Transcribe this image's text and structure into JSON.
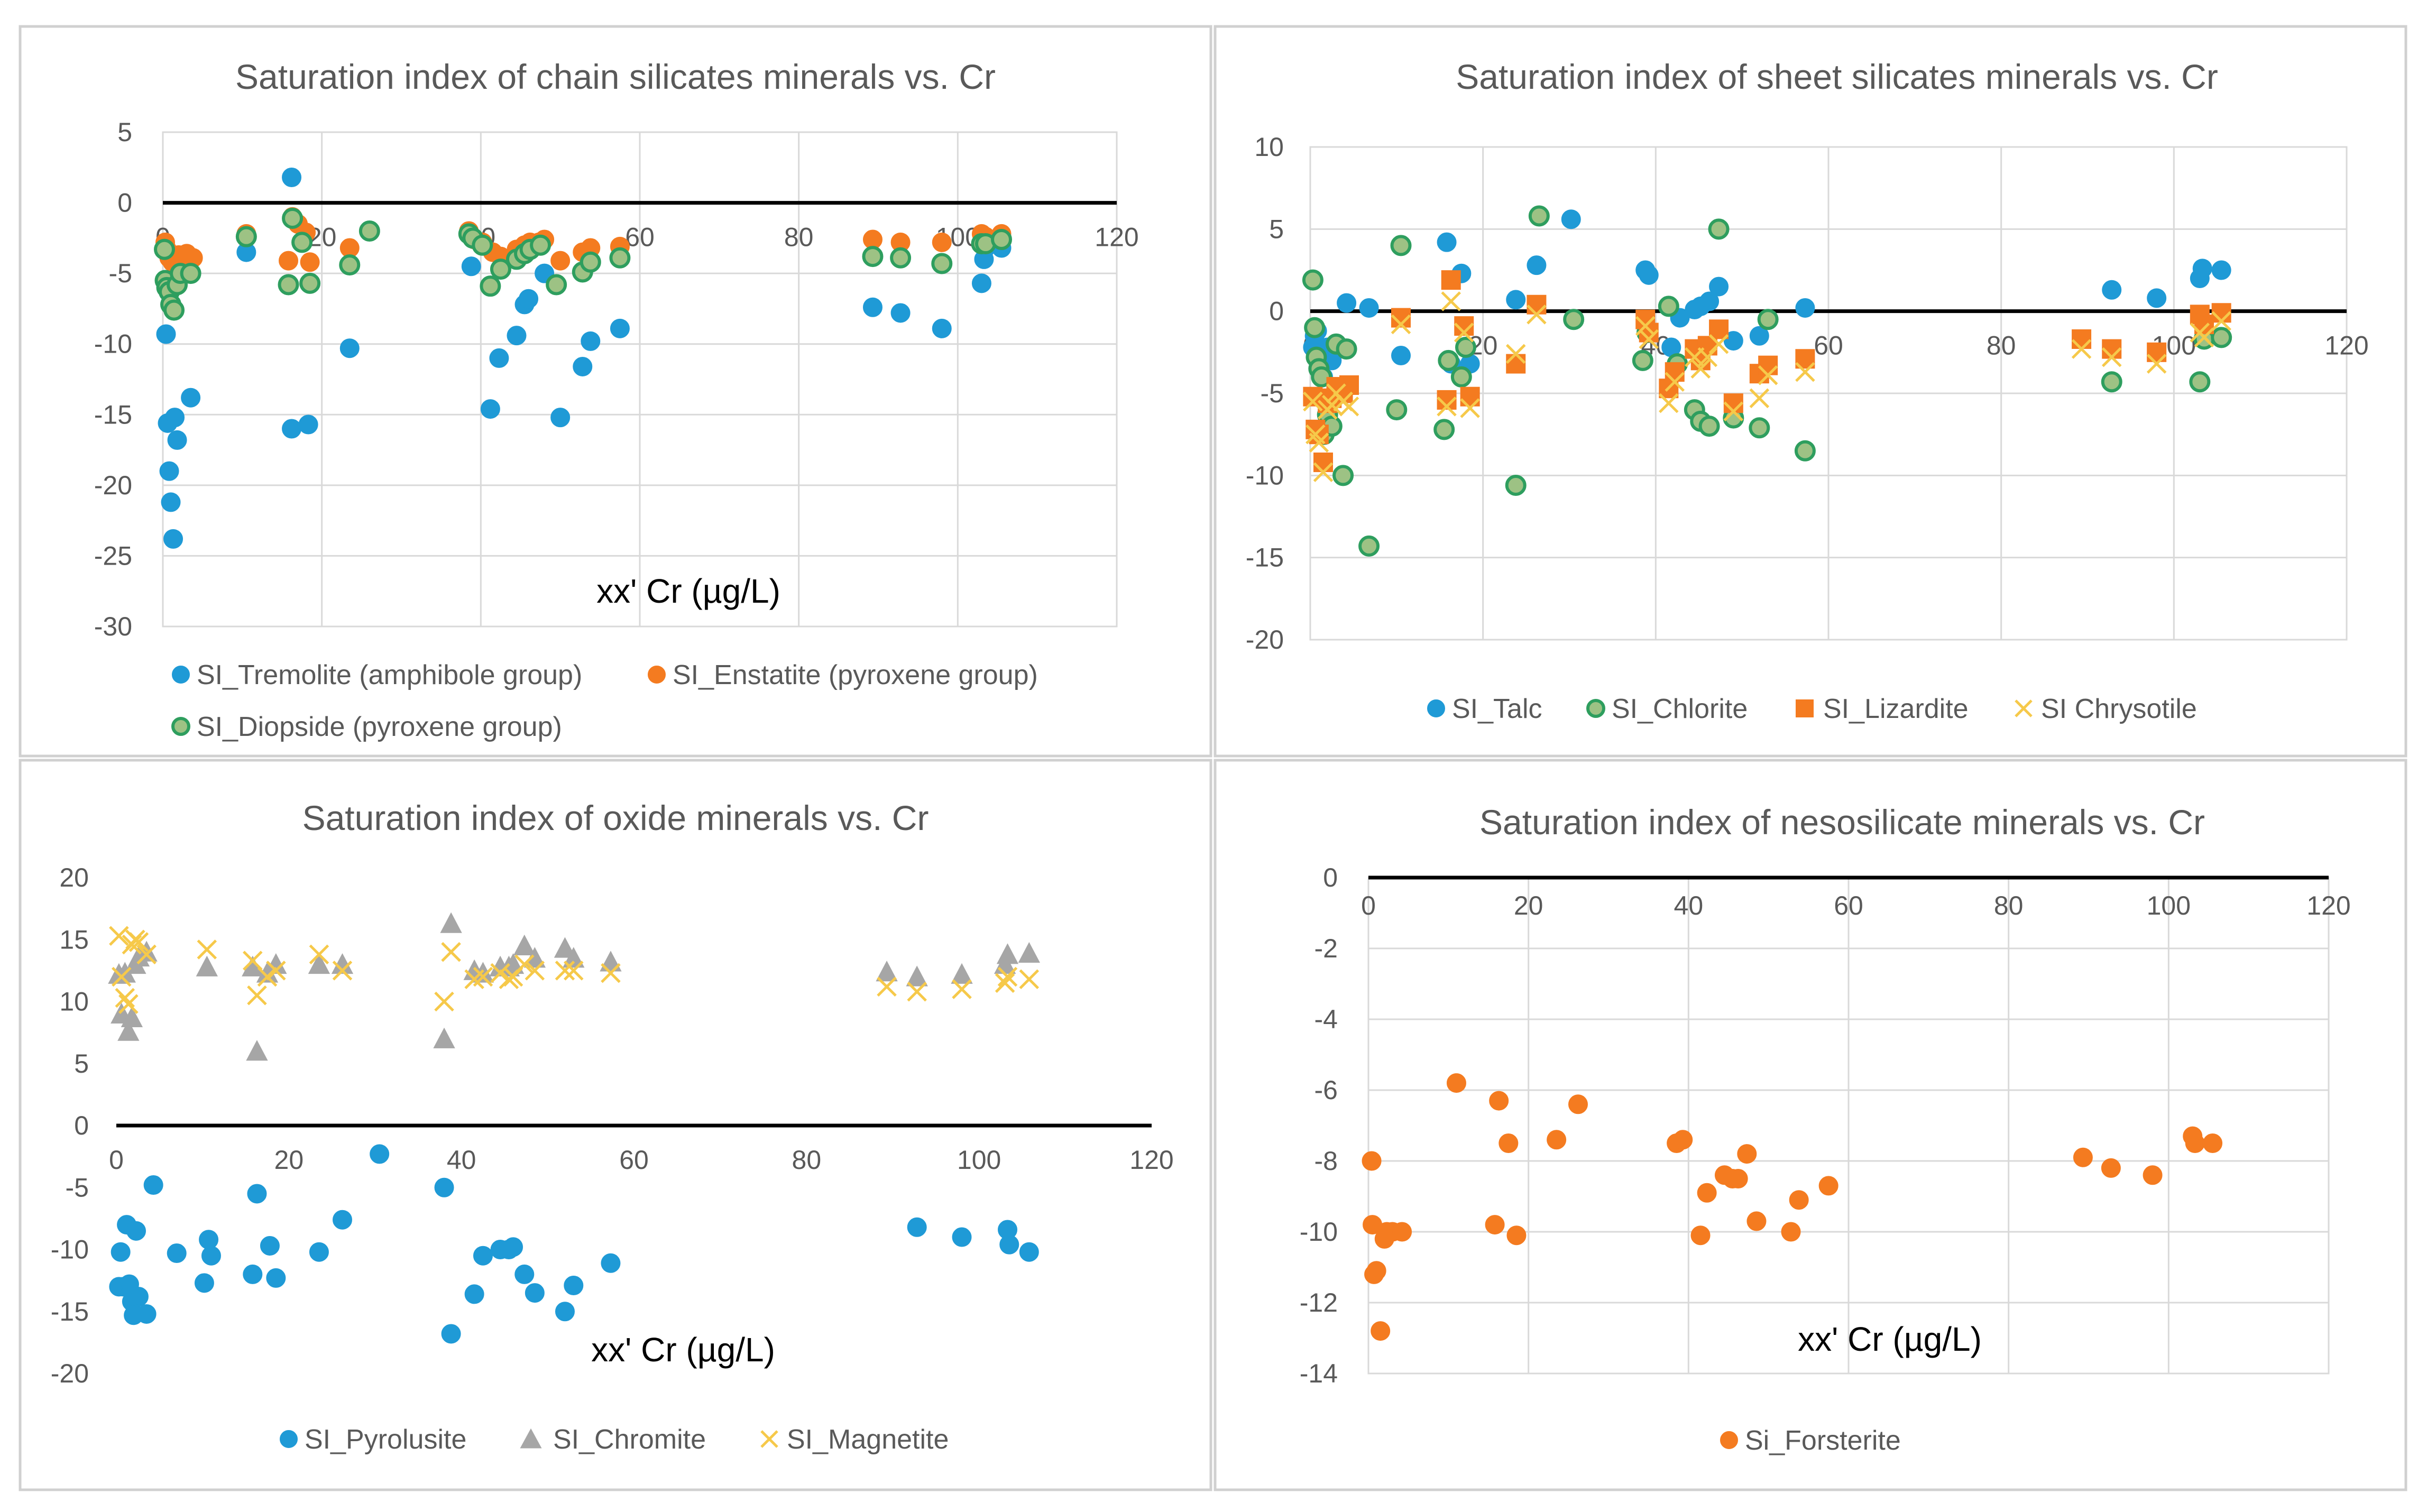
{
  "figure": {
    "panels": [
      "chain",
      "sheet",
      "oxide",
      "neso"
    ],
    "marker_styles": {
      "blue_circle": {
        "fill": "#1f9ad6",
        "stroke": "#1f9ad6"
      },
      "orange_circle": {
        "fill": "#f47b20",
        "stroke": "#f47b20"
      },
      "green_circle": {
        "fill": "#9dc284",
        "stroke": "#2e9e5e"
      },
      "orange_square": {
        "fill": "#f47b20",
        "stroke": "#f47b20"
      },
      "yellow_x": {
        "fill": "none",
        "stroke": "#f6c94a"
      },
      "gray_triangle": {
        "fill": "#a6a6a6",
        "stroke": "#a6a6a6"
      }
    }
  },
  "chart_data": [
    {
      "id": "chain",
      "type": "scatter",
      "title": "Saturation index of chain silicates minerals  vs. Cr",
      "xlabel": "xx' Cr (µg/L)",
      "ylabel": "",
      "xlim": [
        0,
        120
      ],
      "ylim": [
        -30,
        5
      ],
      "xticks": [
        0,
        20,
        40,
        60,
        80,
        100,
        120
      ],
      "yticks": [
        5,
        0,
        -5,
        -10,
        -15,
        -20,
        -25,
        -30
      ],
      "xtick_labels": [
        "0",
        "20",
        "40",
        "60",
        "80",
        "100",
        "120"
      ],
      "ytick_labels": [
        "5",
        "0",
        "-5",
        "-10",
        "-15",
        "-20",
        "-25",
        "-30"
      ],
      "grid": true,
      "legend": "bottom",
      "series": [
        {
          "name": "SI_Tremolite (amphibole group)",
          "marker": "blue_circle",
          "x": [
            0.3,
            0.4,
            0.6,
            0.8,
            1.0,
            1.3,
            1.5,
            1.8,
            2.0,
            2.3,
            3.5,
            10.5,
            16.2,
            16.2,
            18.3,
            23.5,
            38.8,
            41.2,
            42.3,
            44.5,
            45.5,
            46.0,
            48.0,
            50.0,
            52.8,
            53.8,
            57.5,
            89.3,
            92.8,
            98.0,
            103.0,
            103.3,
            103.5,
            105.5
          ],
          "y": [
            -3.0,
            -9.3,
            -15.6,
            -19.0,
            -21.2,
            -23.8,
            -15.2,
            -16.8,
            -5.0,
            -4.2,
            -13.8,
            -3.5,
            1.8,
            -16.0,
            -15.7,
            -10.3,
            -4.5,
            -14.6,
            -11.0,
            -9.4,
            -7.2,
            -6.8,
            -5.0,
            -15.2,
            -11.6,
            -9.8,
            -8.9,
            -7.4,
            -7.8,
            -8.9,
            -5.7,
            -4.0,
            -3.2,
            -3.2
          ]
        },
        {
          "name": "SI_Enstatite (pyroxene group)",
          "marker": "orange_circle",
          "x": [
            0.3,
            0.5,
            0.8,
            1.2,
            1.6,
            2.0,
            2.5,
            3.0,
            3.8,
            10.5,
            15.8,
            16.3,
            17.0,
            18.0,
            18.5,
            23.5,
            26.0,
            38.5,
            39.2,
            40.2,
            41.5,
            42.5,
            44.5,
            45.5,
            46.2,
            47.3,
            48.0,
            50.0,
            52.8,
            53.8,
            57.5,
            89.3,
            92.8,
            98.0,
            103.0,
            103.5,
            105.5
          ],
          "y": [
            -2.8,
            -3.3,
            -3.9,
            -4.2,
            -4.1,
            -3.7,
            -4.0,
            -3.6,
            -3.9,
            -2.2,
            -4.1,
            -1.0,
            -1.5,
            -2.1,
            -4.2,
            -3.2,
            -2.0,
            -2.0,
            -2.6,
            -2.8,
            -3.5,
            -3.8,
            -3.3,
            -3.0,
            -2.8,
            -2.8,
            -2.6,
            -4.1,
            -3.5,
            -3.2,
            -3.1,
            -2.6,
            -2.8,
            -2.8,
            -2.2,
            -2.4,
            -2.2
          ]
        },
        {
          "name": "SI_Diopside (pyroxene group)",
          "marker": "green_circle",
          "x": [
            0.2,
            0.3,
            0.5,
            0.8,
            1.0,
            1.4,
            1.8,
            2.2,
            3.5,
            10.5,
            15.8,
            16.3,
            17.5,
            18.5,
            23.5,
            26.0,
            38.5,
            39.0,
            40.2,
            41.2,
            42.5,
            44.5,
            45.5,
            46.2,
            47.5,
            49.5,
            52.8,
            53.8,
            57.5,
            89.3,
            92.8,
            98.0,
            103.0,
            103.5,
            105.5
          ],
          "y": [
            -3.3,
            -5.5,
            -6.0,
            -6.3,
            -7.2,
            -7.6,
            -5.8,
            -5.0,
            -5.0,
            -2.4,
            -5.8,
            -1.1,
            -2.8,
            -5.7,
            -4.4,
            -2.0,
            -2.2,
            -2.5,
            -3.0,
            -5.9,
            -4.7,
            -4.0,
            -3.6,
            -3.3,
            -3.0,
            -5.8,
            -4.9,
            -4.2,
            -3.9,
            -3.8,
            -3.9,
            -4.3,
            -2.9,
            -2.9,
            -2.6
          ]
        }
      ]
    },
    {
      "id": "sheet",
      "type": "scatter",
      "title": "Saturation index of  sheet silicates minerals vs. Cr",
      "xlabel": "",
      "ylabel": "",
      "xlim": [
        0,
        120
      ],
      "ylim": [
        -20,
        10
      ],
      "xticks": [
        0,
        20,
        40,
        60,
        80,
        100,
        120
      ],
      "yticks": [
        10,
        5,
        0,
        -5,
        -10,
        -15,
        -20
      ],
      "xtick_labels": [
        "0",
        "20",
        "40",
        "60",
        "80",
        "100",
        "120"
      ],
      "ytick_labels": [
        "10",
        "5",
        "0",
        "-5",
        "-10",
        "-15",
        "-20"
      ],
      "grid": true,
      "legend": "bottom",
      "series": [
        {
          "name": "SI_Talc",
          "marker": "blue_circle",
          "x": [
            0.3,
            0.5,
            0.8,
            1.0,
            1.5,
            2.0,
            2.5,
            4.2,
            6.8,
            10.5,
            15.8,
            16.3,
            17.5,
            18.5,
            23.8,
            26.2,
            30.2,
            38.8,
            39.2,
            41.8,
            42.8,
            44.5,
            45.2,
            46.2,
            47.3,
            49.0,
            52.0,
            57.3,
            92.8,
            98.0,
            103.0,
            103.3,
            105.5
          ],
          "y": [
            -2.2,
            -1.5,
            -1.2,
            -3.3,
            -4.0,
            -2.2,
            -3.0,
            0.5,
            0.2,
            -2.7,
            4.2,
            -3.2,
            2.3,
            -3.2,
            0.7,
            2.8,
            5.6,
            2.5,
            2.2,
            -2.2,
            -0.4,
            0.1,
            0.3,
            0.6,
            1.5,
            -1.8,
            -1.5,
            0.2,
            1.3,
            0.8,
            2.0,
            2.6,
            2.5
          ]
        },
        {
          "name": "SI_Chlorite",
          "marker": "green_circle",
          "x": [
            0.3,
            0.5,
            0.7,
            1.0,
            1.3,
            1.6,
            2.0,
            2.5,
            3.0,
            3.8,
            4.2,
            6.8,
            10.0,
            10.5,
            15.5,
            16.0,
            17.5,
            18.0,
            23.8,
            26.5,
            30.5,
            38.5,
            39.0,
            41.5,
            42.5,
            44.5,
            45.2,
            46.2,
            47.3,
            49.0,
            52.0,
            53.0,
            57.3,
            92.8,
            103.0,
            103.5,
            105.5
          ],
          "y": [
            1.9,
            -1.0,
            -2.8,
            -3.5,
            -4.0,
            -7.5,
            -6.3,
            -7.0,
            -2.0,
            -10.0,
            -2.3,
            -14.3,
            -6.0,
            4.0,
            -7.2,
            -3.0,
            -4.0,
            -2.2,
            -10.6,
            5.8,
            -0.5,
            -3.0,
            -1.3,
            0.3,
            -3.2,
            -6.0,
            -6.7,
            -7.0,
            5.0,
            -6.5,
            -7.1,
            -0.5,
            -8.5,
            -4.3,
            -4.3,
            -1.7,
            -1.6
          ]
        },
        {
          "name": "SI_Lizardite",
          "marker": "orange_square",
          "x": [
            0.3,
            0.6,
            1.0,
            1.5,
            2.0,
            2.5,
            3.0,
            3.8,
            4.5,
            10.5,
            15.8,
            16.3,
            17.8,
            18.5,
            23.8,
            26.2,
            38.8,
            39.2,
            41.5,
            42.2,
            44.5,
            45.2,
            46.0,
            47.3,
            49.0,
            52.0,
            53.0,
            57.3,
            89.3,
            92.8,
            98.0,
            103.0,
            103.5,
            105.5
          ],
          "y": [
            -5.2,
            -7.2,
            -7.5,
            -9.2,
            -5.6,
            -5.3,
            -4.6,
            -5.0,
            -4.5,
            -0.4,
            -5.4,
            1.9,
            -0.9,
            -5.2,
            -3.2,
            0.4,
            -0.5,
            -1.3,
            -4.7,
            -3.7,
            -2.3,
            -3.0,
            -2.1,
            -1.1,
            -5.6,
            -3.8,
            -3.3,
            -2.9,
            -1.7,
            -2.3,
            -2.5,
            -0.2,
            -0.8,
            -0.1
          ]
        },
        {
          "name": "SI Chrysotile",
          "marker": "yellow_x",
          "x": [
            0.3,
            0.6,
            1.0,
            1.5,
            2.0,
            2.5,
            3.0,
            3.8,
            4.5,
            10.5,
            15.8,
            16.3,
            17.8,
            18.5,
            23.8,
            26.2,
            38.8,
            39.2,
            41.5,
            42.2,
            44.5,
            45.2,
            46.0,
            47.3,
            49.0,
            52.0,
            53.0,
            57.3,
            89.3,
            92.8,
            98.0,
            103.0,
            103.5,
            105.5
          ],
          "y": [
            -5.5,
            -7.5,
            -8.0,
            -9.8,
            -6.0,
            -5.7,
            -5.0,
            -5.5,
            -5.8,
            -0.8,
            -5.8,
            0.6,
            -1.3,
            -5.9,
            -2.6,
            -0.2,
            -0.9,
            -1.7,
            -5.6,
            -4.3,
            -2.8,
            -3.5,
            -2.8,
            -2.0,
            -6.1,
            -5.3,
            -3.9,
            -3.7,
            -2.3,
            -2.8,
            -3.2,
            -1.3,
            -1.6,
            -0.6
          ]
        }
      ]
    },
    {
      "id": "oxide",
      "type": "scatter",
      "title": "Saturation index of oxide minerals vs. Cr",
      "xlabel": "xx' Cr (µg/L)",
      "ylabel": "",
      "xlim": [
        0,
        120
      ],
      "ylim": [
        -20,
        20
      ],
      "xticks": [
        0,
        20,
        40,
        60,
        80,
        100,
        120
      ],
      "yticks": [
        20,
        15,
        10,
        5,
        0,
        -5,
        -10,
        -15,
        -20
      ],
      "xtick_labels": [
        "0",
        "20",
        "40",
        "60",
        "80",
        "100",
        "120"
      ],
      "ytick_labels": [
        "20",
        "15",
        "10",
        "5",
        "0",
        "-5",
        "-10",
        "-15",
        "-20"
      ],
      "grid": false,
      "legend": "bottom",
      "series": [
        {
          "name": "SI_Pyrolusite",
          "marker": "blue_circle",
          "x": [
            0.3,
            0.5,
            0.8,
            1.2,
            1.5,
            1.8,
            2.0,
            2.3,
            2.6,
            3.5,
            4.3,
            7.0,
            10.2,
            10.7,
            11.0,
            15.8,
            16.3,
            17.8,
            18.5,
            23.5,
            26.2,
            30.5,
            38.0,
            38.8,
            41.5,
            42.5,
            44.5,
            45.5,
            46.0,
            47.3,
            48.5,
            52.0,
            53.0,
            57.3,
            92.8,
            98.0,
            103.3,
            103.5,
            105.8
          ],
          "y": [
            -13.0,
            -10.2,
            -13.0,
            -8.0,
            -12.8,
            -14.2,
            -15.3,
            -8.5,
            -13.8,
            -15.2,
            -4.8,
            -10.3,
            -12.7,
            -9.2,
            -10.5,
            -12.0,
            -5.5,
            -9.7,
            -12.3,
            -10.2,
            -7.6,
            -2.3,
            -5.0,
            -16.8,
            -13.6,
            -10.5,
            -10.0,
            -10.0,
            -9.8,
            -12.0,
            -13.5,
            -15.0,
            -12.9,
            -11.1,
            -8.2,
            -9.0,
            -8.4,
            -9.6,
            -10.2
          ]
        },
        {
          "name": "SI_Chromite",
          "marker": "gray_triangle",
          "x": [
            0.3,
            0.6,
            1.0,
            1.4,
            1.8,
            2.2,
            2.6,
            3.5,
            10.5,
            15.8,
            16.3,
            17.5,
            18.5,
            23.5,
            26.2,
            38.0,
            38.8,
            41.5,
            42.5,
            44.5,
            45.5,
            46.0,
            47.3,
            48.5,
            52.0,
            53.0,
            57.3,
            89.3,
            92.8,
            98.0,
            103.0,
            103.3,
            105.8
          ],
          "y": [
            12.2,
            9.0,
            12.3,
            7.6,
            8.7,
            13.0,
            13.6,
            14.0,
            12.8,
            12.8,
            6.0,
            12.3,
            13.0,
            13.0,
            13.0,
            7.0,
            16.3,
            12.5,
            12.3,
            12.8,
            12.8,
            13.0,
            14.5,
            13.5,
            14.3,
            13.5,
            13.2,
            12.4,
            12.0,
            12.2,
            13.0,
            13.8,
            13.9
          ]
        },
        {
          "name": "SI_Magnetite",
          "marker": "yellow_x",
          "x": [
            0.3,
            0.6,
            1.0,
            1.4,
            1.8,
            2.2,
            2.6,
            3.5,
            10.5,
            15.8,
            16.3,
            17.5,
            18.5,
            23.5,
            26.2,
            38.0,
            38.8,
            41.5,
            42.5,
            44.5,
            45.5,
            46.0,
            47.3,
            48.5,
            52.0,
            53.0,
            57.3,
            89.3,
            92.8,
            98.0,
            103.0,
            103.3,
            105.8
          ],
          "y": [
            15.3,
            12.0,
            10.3,
            9.8,
            14.6,
            15.0,
            14.8,
            13.8,
            14.2,
            13.3,
            10.5,
            12.0,
            12.5,
            13.8,
            12.5,
            10.0,
            14.0,
            11.8,
            12.0,
            12.3,
            11.8,
            12.0,
            13.0,
            12.5,
            12.5,
            12.5,
            12.3,
            11.2,
            10.8,
            11.0,
            11.5,
            12.0,
            11.8
          ]
        }
      ]
    },
    {
      "id": "neso",
      "type": "scatter",
      "title": "Saturation index of  nesosilicate minerals vs. Cr",
      "xlabel": "xx' Cr (µg/L)",
      "ylabel": "",
      "xlim": [
        0,
        120
      ],
      "ylim": [
        -14,
        0
      ],
      "xticks": [
        0,
        20,
        40,
        60,
        80,
        100,
        120
      ],
      "yticks": [
        0,
        -2,
        -4,
        -6,
        -8,
        -10,
        -12,
        -14
      ],
      "xtick_labels": [
        "0",
        "20",
        "40",
        "60",
        "80",
        "100",
        "120"
      ],
      "ytick_labels": [
        "0",
        "-2",
        "-4",
        "-6",
        "-8",
        "-10",
        "-12",
        "-14"
      ],
      "grid": true,
      "legend": "bottom",
      "series": [
        {
          "name": "Si_Forsterite",
          "marker": "orange_circle",
          "x": [
            0.4,
            0.5,
            0.7,
            1.0,
            1.5,
            2.0,
            2.3,
            3.0,
            4.2,
            11.0,
            15.8,
            16.3,
            17.5,
            18.5,
            23.5,
            26.2,
            38.5,
            39.3,
            41.5,
            42.3,
            44.5,
            45.5,
            46.2,
            47.3,
            48.5,
            52.8,
            53.8,
            57.5,
            89.3,
            92.8,
            98.0,
            103.0,
            103.3,
            105.5
          ],
          "y": [
            -8.0,
            -9.8,
            -11.2,
            -11.1,
            -12.8,
            -10.2,
            -10.0,
            -10.0,
            -10.0,
            -5.8,
            -9.8,
            -6.3,
            -7.5,
            -10.1,
            -7.4,
            -6.4,
            -7.5,
            -7.4,
            -10.1,
            -8.9,
            -8.4,
            -8.5,
            -8.5,
            -7.8,
            -9.7,
            -10.0,
            -9.1,
            -8.7,
            -7.9,
            -8.2,
            -8.4,
            -7.3,
            -7.5,
            -7.5
          ]
        }
      ]
    }
  ]
}
